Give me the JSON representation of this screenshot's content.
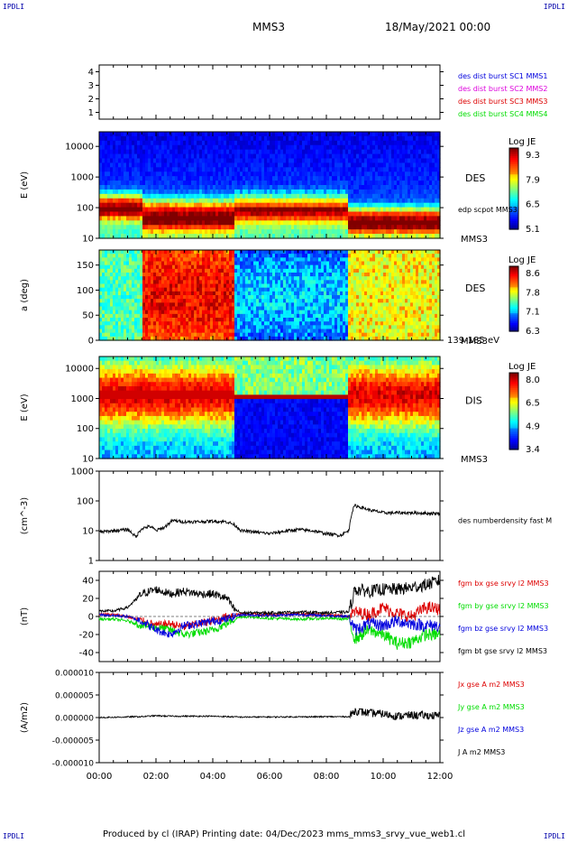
{
  "corners": {
    "tl": "IPDLI",
    "tr": "IPDLI",
    "bl": "IPDLI",
    "br": "IPDLI"
  },
  "header": {
    "spacecraft": "MMS3",
    "date": "18/May/2021 00:00"
  },
  "footer": {
    "text": "Produced by cl (IRAP)   Printing date: 04/Dec/2023   mms_mms3_srvy_vue_web1.cl"
  },
  "colors": {
    "c_red": "#dd0000",
    "c_green": "#00dd00",
    "c_blue": "#0000dd",
    "c_magenta": "#dd00dd",
    "c_black": "#000000"
  },
  "chart_data": [
    {
      "type": "scatter",
      "id": "burst",
      "ylim": [
        0.5,
        4.5
      ],
      "yticks": [
        {
          "v": 1,
          "label": "1"
        },
        {
          "v": 2,
          "label": "2"
        },
        {
          "v": 3,
          "label": "3"
        },
        {
          "v": 4,
          "label": "4"
        }
      ],
      "ylabel": "",
      "legend": [
        {
          "text": "des dist burst SC1 MMS1",
          "color": "#0000dd"
        },
        {
          "text": "des dist burst SC2 MMS2",
          "color": "#dd00dd"
        },
        {
          "text": "des dist burst SC3 MMS3",
          "color": "#dd0000"
        },
        {
          "text": "des dist burst SC4 MMS4",
          "color": "#00dd00"
        }
      ]
    },
    {
      "type": "heatmap",
      "id": "des_e",
      "log": true,
      "ylim": [
        10,
        30000
      ],
      "yticks": [
        {
          "v": 10,
          "label": "10"
        },
        {
          "v": 100,
          "label": "100"
        },
        {
          "v": 1000,
          "label": "1000"
        },
        {
          "v": 10000,
          "label": "10000"
        }
      ],
      "ylabel": "E (eV)",
      "label_main": "DES",
      "label_sub": "MMS3",
      "legend_line": "edp scpot MMS3",
      "colorbar": {
        "title": "Log JE",
        "ticks": [
          "9.3",
          "7.9",
          "6.5",
          "5.1"
        ]
      }
    },
    {
      "type": "heatmap",
      "id": "des_pa",
      "log": false,
      "ylim": [
        0,
        180
      ],
      "yticks": [
        {
          "v": 0,
          "label": "0"
        },
        {
          "v": 50,
          "label": "50"
        },
        {
          "v": 100,
          "label": "100"
        },
        {
          "v": 150,
          "label": "150"
        }
      ],
      "ylabel": "a (deg)",
      "label_main": "DES",
      "label_sub": "MMS3",
      "note": "139-185 eV",
      "colorbar": {
        "title": "Log JE",
        "ticks": [
          "8.6",
          "7.8",
          "7.1",
          "6.3"
        ]
      }
    },
    {
      "type": "heatmap",
      "id": "dis_e",
      "log": true,
      "ylim": [
        10,
        25000
      ],
      "yticks": [
        {
          "v": 10,
          "label": "10"
        },
        {
          "v": 100,
          "label": "100"
        },
        {
          "v": 1000,
          "label": "1000"
        },
        {
          "v": 10000,
          "label": "10000"
        }
      ],
      "ylabel": "E (eV)",
      "label_main": "DIS",
      "label_sub": "MMS3",
      "colorbar": {
        "title": "Log JE",
        "ticks": [
          "8.0",
          "6.5",
          "4.9",
          "3.4"
        ]
      }
    },
    {
      "type": "line",
      "id": "density",
      "log": true,
      "ylim": [
        1,
        1000
      ],
      "yticks": [
        {
          "v": 1,
          "label": "1"
        },
        {
          "v": 10,
          "label": "10"
        },
        {
          "v": 100,
          "label": "100"
        },
        {
          "v": 1000,
          "label": "1000"
        }
      ],
      "ylabel": "(cm^-3)",
      "legend": [
        {
          "text": "des numberdensity fast M",
          "color": "#000000"
        }
      ],
      "x": [
        0,
        0.5,
        1.0,
        1.3,
        1.5,
        1.8,
        2.0,
        2.3,
        2.6,
        3.0,
        3.5,
        4.0,
        4.5,
        4.75,
        5.0,
        6.0,
        7.0,
        7.5,
        8.0,
        8.5,
        8.8,
        9.0,
        9.5,
        10.0,
        11.0,
        12.0
      ],
      "values": [
        9,
        10,
        11,
        6,
        12,
        14,
        10,
        13,
        22,
        20,
        20,
        21,
        20,
        16,
        10,
        8,
        11,
        10,
        8,
        7,
        10,
        70,
        50,
        40,
        40,
        38
      ]
    },
    {
      "type": "line",
      "id": "bfield",
      "log": false,
      "ylim": [
        -50,
        50
      ],
      "yticks": [
        {
          "v": -40,
          "label": "-40"
        },
        {
          "v": -20,
          "label": "-20"
        },
        {
          "v": 0,
          "label": "0"
        },
        {
          "v": 20,
          "label": "20"
        },
        {
          "v": 40,
          "label": "40"
        }
      ],
      "ylabel": "(nT)",
      "legend": [
        {
          "text": "fgm bx gse srvy l2 MMS3",
          "color": "#dd0000"
        },
        {
          "text": "fgm by gse srvy l2 MMS3",
          "color": "#00dd00"
        },
        {
          "text": "fgm bz gse srvy l2 MMS3",
          "color": "#0000dd"
        },
        {
          "text": "fgm bt gse srvy l2 MMS3",
          "color": "#000000"
        }
      ],
      "x": [
        0,
        0.5,
        1.0,
        1.5,
        2.0,
        2.5,
        3.0,
        3.5,
        4.0,
        4.5,
        4.75,
        5.0,
        6.0,
        7.0,
        8.0,
        8.8,
        9.0,
        9.5,
        10.0,
        10.5,
        11.0,
        11.5,
        12.0
      ],
      "series": [
        {
          "name": "fgm bx gse srvy l2 MMS3",
          "values": [
            3,
            2,
            0,
            -5,
            -10,
            -8,
            -12,
            -8,
            -5,
            0,
            2,
            3,
            2,
            3,
            2,
            0,
            5,
            2,
            10,
            3,
            0,
            10,
            8
          ]
        },
        {
          "name": "fgm by gse srvy l2 MMS3",
          "values": [
            -3,
            -3,
            -5,
            -10,
            -12,
            -15,
            -20,
            -18,
            -15,
            -8,
            -3,
            0,
            -2,
            -3,
            -2,
            -3,
            -25,
            -15,
            -20,
            -30,
            -28,
            -20,
            -20
          ]
        },
        {
          "name": "fgm bz gse srvy l2 MMS3",
          "values": [
            2,
            1,
            0,
            -5,
            -15,
            -20,
            -10,
            -8,
            -5,
            -3,
            0,
            2,
            1,
            2,
            1,
            0,
            -15,
            -8,
            -10,
            -5,
            -8,
            -10,
            -10
          ]
        },
        {
          "name": "fgm bt gse srvy l2 MMS3",
          "values": [
            6,
            6,
            10,
            25,
            30,
            25,
            28,
            25,
            25,
            20,
            8,
            4,
            4,
            5,
            4,
            5,
            30,
            28,
            30,
            30,
            32,
            35,
            40
          ]
        }
      ]
    },
    {
      "type": "line",
      "id": "current",
      "log": false,
      "ylim": [
        -1e-05,
        1e-05
      ],
      "yticks": [
        {
          "v": -1e-05,
          "label": "-0.000010"
        },
        {
          "v": -5e-06,
          "label": "-0.000005"
        },
        {
          "v": 0,
          "label": "0.000000"
        },
        {
          "v": 5e-06,
          "label": "0.000005"
        },
        {
          "v": 1e-05,
          "label": "0.000010"
        }
      ],
      "ylabel": "(A/m2)",
      "legend": [
        {
          "text": "Jx gse A m2 MMS3",
          "color": "#dd0000"
        },
        {
          "text": "Jy gse A m2 MMS3",
          "color": "#00dd00"
        },
        {
          "text": "Jz gse A m2 MMS3",
          "color": "#0000dd"
        },
        {
          "text": "J A m2 MMS3",
          "color": "#000000"
        }
      ],
      "x": [
        0,
        1.5,
        2.0,
        2.5,
        3.0,
        4.0,
        5.0,
        8.8,
        9.0,
        9.5,
        10.0,
        10.5,
        11.0,
        12.0
      ],
      "series": [
        {
          "name": "J A m2 MMS3",
          "values": [
            0,
            2e-07,
            4e-07,
            3e-07,
            3e-07,
            3e-07,
            1e-07,
            2e-07,
            1.5e-06,
            1e-06,
            8e-07,
            3e-07,
            5e-07,
            4e-07
          ]
        }
      ]
    }
  ],
  "xaxis": {
    "ticks": [
      "00:00",
      "02:00",
      "04:00",
      "06:00",
      "08:00",
      "10:00",
      "12:00"
    ],
    "range": [
      0,
      12
    ]
  }
}
